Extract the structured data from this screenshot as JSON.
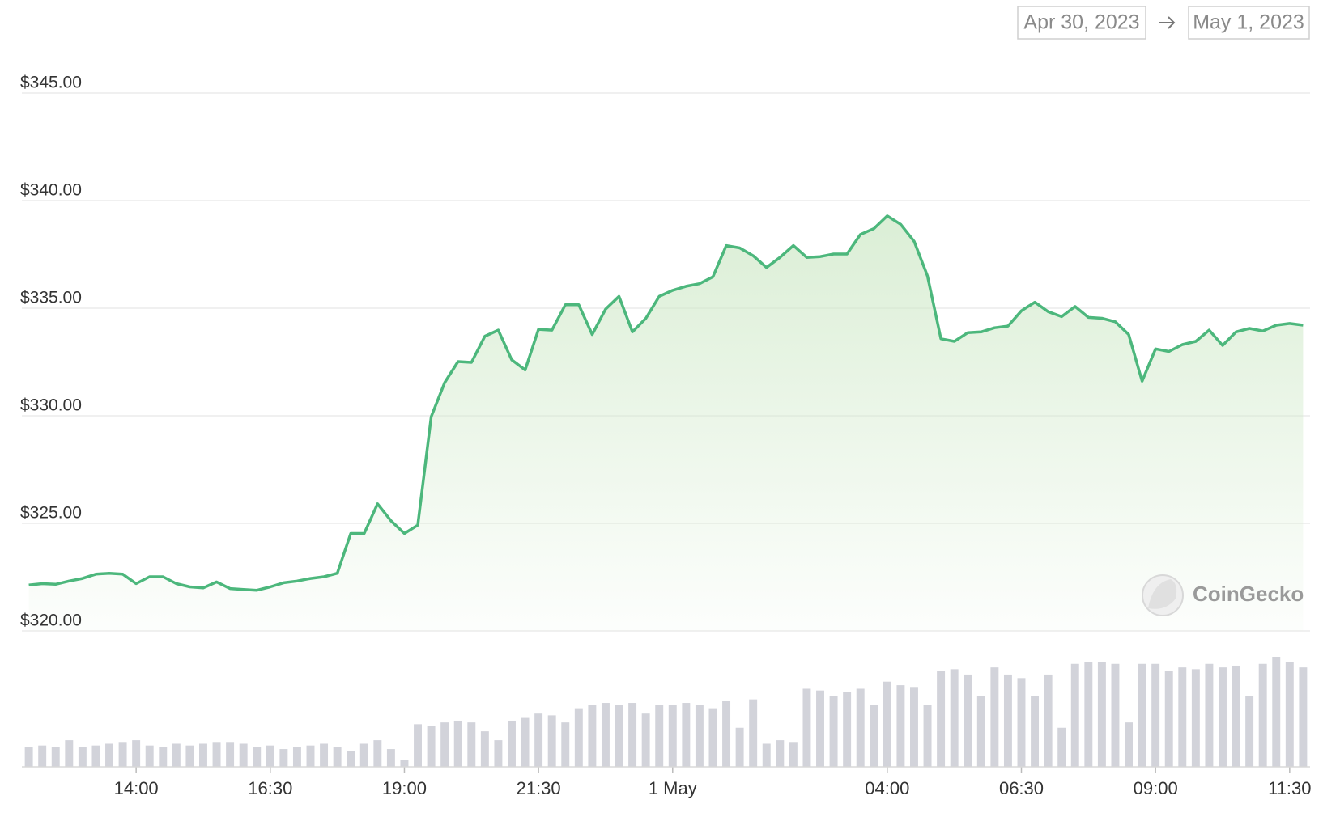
{
  "chart_data": {
    "type": "line",
    "date_range": {
      "start": "Apr 30, 2023",
      "end": "May 1, 2023"
    },
    "watermark": "CoinGecko",
    "color": "#4cb77c",
    "volume_color": "#d2d3da",
    "grid": true,
    "x": [
      12.0,
      12.25,
      12.5,
      12.75,
      13.0,
      13.25,
      13.5,
      13.75,
      14.0,
      14.25,
      14.5,
      14.75,
      15.0,
      15.25,
      15.5,
      15.75,
      16.0,
      16.25,
      16.5,
      16.75,
      17.0,
      17.25,
      17.5,
      17.75,
      18.0,
      18.25,
      18.5,
      18.75,
      19.0,
      19.25,
      19.5,
      19.75,
      20.0,
      20.25,
      20.5,
      20.75,
      21.0,
      21.25,
      21.5,
      21.75,
      22.0,
      22.25,
      22.5,
      22.75,
      23.0,
      23.25,
      23.5,
      23.75,
      24.0,
      24.25,
      24.5,
      24.75,
      25.0,
      25.25,
      25.5,
      25.75,
      26.0,
      26.25,
      26.5,
      26.75,
      27.0,
      27.25,
      27.5,
      27.75,
      28.0,
      28.25,
      28.5,
      28.75,
      29.0,
      29.25,
      29.5,
      29.75,
      30.0,
      30.25,
      30.5,
      30.75,
      31.0,
      31.25,
      31.5,
      31.75,
      32.0,
      32.25,
      32.5,
      32.75,
      33.0,
      33.25,
      33.5,
      33.75,
      34.0,
      34.25,
      34.5,
      34.75,
      35.0,
      35.25,
      35.5,
      35.75
    ],
    "values": [
      322.13,
      322.2,
      322.17,
      322.32,
      322.44,
      322.64,
      322.68,
      322.64,
      322.2,
      322.52,
      322.52,
      322.2,
      322.05,
      322.0,
      322.28,
      321.97,
      321.93,
      321.89,
      322.05,
      322.24,
      322.32,
      322.44,
      322.52,
      322.68,
      324.53,
      324.53,
      325.91,
      325.12,
      324.53,
      324.92,
      329.96,
      331.54,
      332.52,
      332.48,
      333.7,
      333.98,
      332.6,
      332.13,
      334.02,
      333.98,
      335.16,
      335.16,
      333.78,
      334.96,
      335.55,
      333.9,
      334.53,
      335.55,
      335.83,
      336.02,
      336.14,
      336.46,
      337.91,
      337.8,
      337.44,
      336.89,
      337.36,
      337.91,
      337.36,
      337.4,
      337.52,
      337.52,
      338.43,
      338.7,
      339.29,
      338.9,
      338.11,
      336.5,
      333.58,
      333.46,
      333.86,
      333.9,
      334.09,
      334.17,
      334.88,
      335.28,
      334.84,
      334.61,
      335.08,
      334.57,
      334.53,
      334.37,
      333.78,
      331.61,
      333.11,
      332.99,
      333.31,
      333.46,
      333.98,
      333.27,
      333.9,
      334.06,
      333.94,
      334.21,
      334.29,
      334.21
    ],
    "volumes": [
      22,
      24,
      22,
      30,
      22,
      24,
      26,
      28,
      30,
      24,
      22,
      26,
      24,
      26,
      28,
      28,
      26,
      22,
      24,
      20,
      22,
      24,
      26,
      22,
      18,
      26,
      30,
      20,
      8,
      48,
      46,
      50,
      52,
      50,
      40,
      30,
      52,
      56,
      60,
      58,
      50,
      66,
      70,
      72,
      70,
      72,
      60,
      70,
      70,
      72,
      70,
      66,
      74,
      44,
      76,
      26,
      30,
      28,
      88,
      86,
      80,
      84,
      88,
      70,
      96,
      92,
      90,
      70,
      108,
      110,
      104,
      80,
      112,
      104,
      100,
      80,
      104,
      44,
      116,
      118,
      118,
      116,
      50,
      116,
      116,
      108,
      112,
      110,
      116,
      112,
      114,
      80,
      116,
      124,
      118,
      112
    ],
    "xlim": [
      11.87,
      35.88
    ],
    "xticks": [
      {
        "value": 14,
        "label": "14:00"
      },
      {
        "value": 16.5,
        "label": "16:30"
      },
      {
        "value": 19,
        "label": "19:00"
      },
      {
        "value": 21.5,
        "label": "21:30"
      },
      {
        "value": 24,
        "label": "1 May"
      },
      {
        "value": 28,
        "label": "04:00"
      },
      {
        "value": 30.5,
        "label": "06:30"
      },
      {
        "value": 33,
        "label": "09:00"
      },
      {
        "value": 35.5,
        "label": "11:30"
      }
    ],
    "ylim": [
      320,
      345
    ],
    "yticks": [
      {
        "value": 320,
        "label": "$320.00"
      },
      {
        "value": 325,
        "label": "$325.00"
      },
      {
        "value": 330,
        "label": "$330.00"
      },
      {
        "value": 335,
        "label": "$335.00"
      },
      {
        "value": 340,
        "label": "$340.00"
      },
      {
        "value": 345,
        "label": "$345.00"
      }
    ]
  }
}
